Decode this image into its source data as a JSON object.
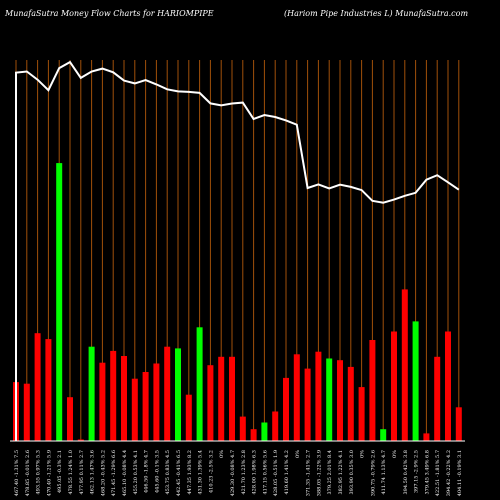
{
  "header": {
    "left_title": "MunafaSutra  Money Flow  Charts for HARIOMPIPE",
    "right_title": "(Hariom Pipe   Industries L) MunafaSutra.com"
  },
  "chart_data": {
    "type": "bar",
    "title": "MunafaSutra  Money Flow  Charts for HARIOMPIPE",
    "subtitle": "(Hariom Pipe   Industries L) MunafaSutra.com",
    "categories": [
      "467.40 -1.31% 7.5",
      "478.85 -0.01% 2.6",
      "493.55 0.97% 5.3",
      "470.40 -1.21% 5.9",
      "495.05 -0.3% 2.1",
      "478.55 1.24% 1.0",
      "477.95 0.11% 2.7",
      "462.13 1.47% 3.6",
      "468.20 -0.43% 5.2",
      "471.45 -1.29% 6.6",
      "465.10 -0.08% 4.4",
      "455.20 0.53% 4.1",
      "446.50 -1.8% 4.7",
      "445.60 -0.1% 3.5",
      "453.75 0.83% 4.5",
      "442.45 -0.41% 6.5",
      "447.35 1.93% 8.2",
      "431.30 1.39% 5.4",
      "410.23 -2.5% 3.2",
      "0%",
      "429.30 -0.08% 4.7",
      "421.70 1.23% 2.8",
      "428.00 1.98% 6.3",
      "417.15 0.56% 5.6",
      "428.05 -0.51% 1.9",
      "419.60 1.41% 4.2",
      "0%",
      "371.35 -1.41% 2.7",
      "388.05 -1.22% 3.9",
      "379.25 2.01% 8.4",
      "382.95 1.22% 4.1",
      "393.90 0.35% 3.0",
      "0%",
      "390.75 -0.79% 2.6",
      "411.74 1.13% 4.7",
      "0%",
      "394.50 0.42% 3.8",
      "397.15 -2.9% 2.5",
      "379.45 3.49% 6.8",
      "422.51 -1.81% 5.7",
      "394.42 -0.22% 4.2",
      "404.11 -0.19% 3.1"
    ],
    "bar_colors": [
      "red",
      "red",
      "red",
      "red",
      "green",
      "red",
      "red",
      "green",
      "red",
      "red",
      "red",
      "red",
      "red",
      "red",
      "red",
      "green",
      "red",
      "green",
      "red",
      "red",
      "red",
      "red",
      "red",
      "green",
      "red",
      "red",
      "red",
      "red",
      "red",
      "green",
      "red",
      "red",
      "red",
      "red",
      "green",
      "red",
      "red",
      "green",
      "red",
      "red",
      "red",
      "red"
    ],
    "values": [
      70,
      68,
      128,
      121,
      330,
      52,
      0,
      112,
      93,
      107,
      101,
      74,
      82,
      92,
      112,
      110,
      55,
      135,
      90,
      100,
      100,
      29,
      14,
      22,
      35,
      75,
      103,
      86,
      106,
      98,
      96,
      88,
      64,
      120,
      14,
      130,
      180,
      142,
      9,
      100,
      130,
      40
    ],
    "price": [
      467.4,
      468.5,
      460.3,
      449.8,
      471.9,
      477.9,
      462.1,
      468.5,
      471.4,
      467.7,
      459.4,
      456.6,
      459.9,
      455.6,
      450.7,
      448.6,
      448.1,
      447.1,
      436.6,
      434.6,
      436.5,
      437.4,
      421.0,
      425.0,
      423.0,
      419.6,
      415.3,
      352.0,
      355.6,
      351.6,
      355.3,
      353.1,
      349.9,
      339.2,
      337.3,
      340.4,
      344.2,
      347.2,
      360.3,
      364.8,
      357.7,
      350.3
    ],
    "ylim": [
      0,
      500
    ],
    "grid": true
  }
}
